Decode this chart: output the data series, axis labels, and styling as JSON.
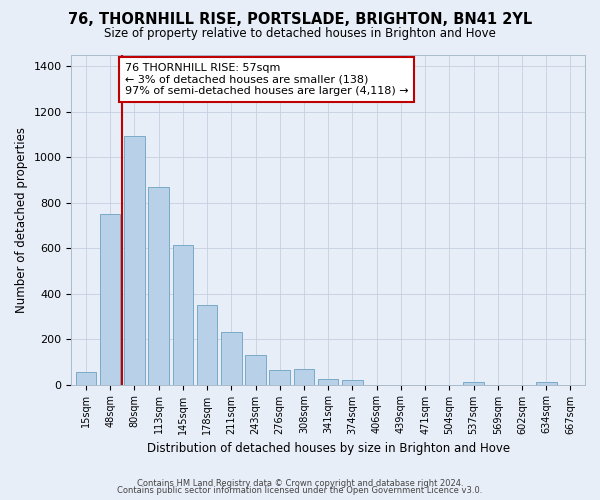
{
  "title": "76, THORNHILL RISE, PORTSLADE, BRIGHTON, BN41 2YL",
  "subtitle": "Size of property relative to detached houses in Brighton and Hove",
  "xlabel": "Distribution of detached houses by size in Brighton and Hove",
  "ylabel": "Number of detached properties",
  "categories": [
    "15sqm",
    "48sqm",
    "80sqm",
    "113sqm",
    "145sqm",
    "178sqm",
    "211sqm",
    "243sqm",
    "276sqm",
    "308sqm",
    "341sqm",
    "374sqm",
    "406sqm",
    "439sqm",
    "471sqm",
    "504sqm",
    "537sqm",
    "569sqm",
    "602sqm",
    "634sqm",
    "667sqm"
  ],
  "values": [
    55,
    750,
    1095,
    870,
    615,
    350,
    230,
    130,
    65,
    70,
    25,
    18,
    0,
    0,
    0,
    0,
    10,
    0,
    0,
    10,
    0
  ],
  "bar_color": "#b8d0e8",
  "bar_edge_color": "#7aaac8",
  "highlight_color": "#c00000",
  "annotation_line1": "76 THORNHILL RISE: 57sqm",
  "annotation_line2": "← 3% of detached houses are smaller (138)",
  "annotation_line3": "97% of semi-detached houses are larger (4,118) →",
  "ylim": [
    0,
    1450
  ],
  "yticks": [
    0,
    200,
    400,
    600,
    800,
    1000,
    1200,
    1400
  ],
  "footer1": "Contains HM Land Registry data © Crown copyright and database right 2024.",
  "footer2": "Contains public sector information licensed under the Open Government Licence v3.0.",
  "bg_color": "#e8eef8",
  "plot_bg_color": "#e8eef8"
}
